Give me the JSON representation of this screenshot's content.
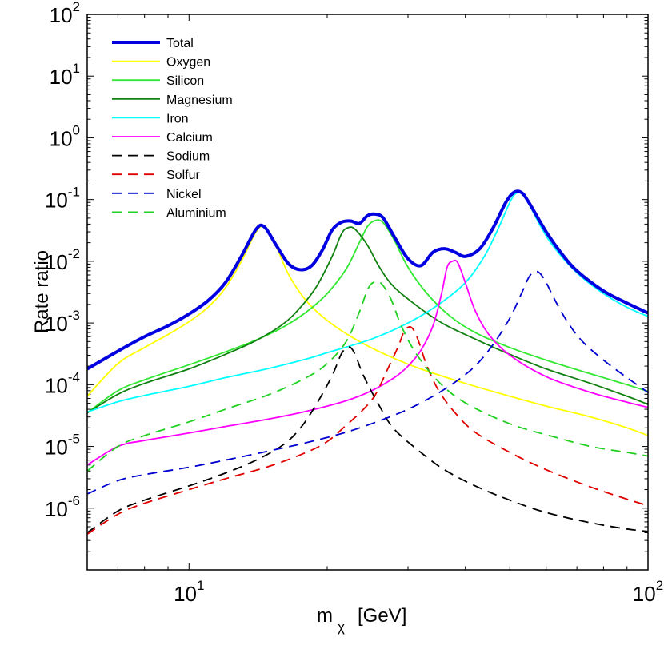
{
  "chart_data": {
    "type": "line",
    "xscale": "log",
    "yscale": "log",
    "xlim": [
      6,
      100
    ],
    "ylim": [
      1e-07,
      100
    ],
    "xlabel": {
      "base": "m",
      "subscript": "χ",
      "unit": "[GeV]"
    },
    "ylabel": "Rate ratio",
    "x_ticks": [
      {
        "value": 10,
        "base": "10",
        "exp": "1"
      },
      {
        "value": 100,
        "base": "10",
        "exp": "2"
      }
    ],
    "y_ticks": [
      {
        "value": 1e-06,
        "base": "10",
        "exp": "-6"
      },
      {
        "value": 1e-05,
        "base": "10",
        "exp": "-5"
      },
      {
        "value": 0.0001,
        "base": "10",
        "exp": "-4"
      },
      {
        "value": 0.001,
        "base": "10",
        "exp": "-3"
      },
      {
        "value": 0.01,
        "base": "10",
        "exp": "-2"
      },
      {
        "value": 0.1,
        "base": "10",
        "exp": "-1"
      },
      {
        "value": 1,
        "base": "10",
        "exp": "0"
      },
      {
        "value": 10,
        "base": "10",
        "exp": "1"
      },
      {
        "value": 100,
        "base": "10",
        "exp": "2"
      }
    ],
    "legend_position": "top-left",
    "series": [
      {
        "name": "Total",
        "color": "#0000e0",
        "dash": "solid",
        "width": 4,
        "points": [
          [
            6,
            0.00018
          ],
          [
            7,
            0.00035
          ],
          [
            8,
            0.0006
          ],
          [
            9,
            0.0009
          ],
          [
            10,
            0.0014
          ],
          [
            11,
            0.0023
          ],
          [
            12,
            0.0045
          ],
          [
            13,
            0.012
          ],
          [
            14,
            0.033
          ],
          [
            14.6,
            0.036
          ],
          [
            15.5,
            0.018
          ],
          [
            16.5,
            0.009
          ],
          [
            17.5,
            0.0073
          ],
          [
            18.5,
            0.0085
          ],
          [
            19.5,
            0.015
          ],
          [
            20.5,
            0.032
          ],
          [
            21.5,
            0.043
          ],
          [
            22.5,
            0.045
          ],
          [
            23.5,
            0.041
          ],
          [
            24.5,
            0.055
          ],
          [
            25.5,
            0.058
          ],
          [
            26.5,
            0.05
          ],
          [
            28,
            0.025
          ],
          [
            30,
            0.011
          ],
          [
            32,
            0.0085
          ],
          [
            34,
            0.014
          ],
          [
            36,
            0.016
          ],
          [
            38,
            0.014
          ],
          [
            40,
            0.012
          ],
          [
            43,
            0.016
          ],
          [
            46,
            0.035
          ],
          [
            49,
            0.09
          ],
          [
            51,
            0.13
          ],
          [
            53,
            0.13
          ],
          [
            55,
            0.09
          ],
          [
            60,
            0.03
          ],
          [
            65,
            0.013
          ],
          [
            70,
            0.007
          ],
          [
            80,
            0.0033
          ],
          [
            90,
            0.0021
          ],
          [
            100,
            0.00145
          ]
        ]
      },
      {
        "name": "Oxygen",
        "color": "#ffff00",
        "dash": "solid",
        "width": 1.8,
        "points": [
          [
            6,
            6.5e-05
          ],
          [
            7,
            0.00022
          ],
          [
            8,
            0.0004
          ],
          [
            9,
            0.00065
          ],
          [
            10,
            0.00105
          ],
          [
            11,
            0.0018
          ],
          [
            12,
            0.0037
          ],
          [
            13,
            0.01
          ],
          [
            14,
            0.03
          ],
          [
            14.6,
            0.035
          ],
          [
            15.5,
            0.017
          ],
          [
            16.5,
            0.006
          ],
          [
            18,
            0.0023
          ],
          [
            20,
            0.0011
          ],
          [
            23,
            0.00055
          ],
          [
            27,
            0.0003
          ],
          [
            32,
            0.00018
          ],
          [
            40,
            0.000105
          ],
          [
            50,
            6.5e-05
          ],
          [
            60,
            4.5e-05
          ],
          [
            75,
            3e-05
          ],
          [
            90,
            2e-05
          ],
          [
            100,
            1.5e-05
          ]
        ]
      },
      {
        "name": "Silicon",
        "color": "#30e830",
        "dash": "solid",
        "width": 1.8,
        "points": [
          [
            6,
            3.5e-05
          ],
          [
            7,
            8e-05
          ],
          [
            8,
            0.00012
          ],
          [
            10,
            0.00021
          ],
          [
            12,
            0.00034
          ],
          [
            14,
            0.00053
          ],
          [
            16,
            0.00085
          ],
          [
            18,
            0.0015
          ],
          [
            20,
            0.003
          ],
          [
            22,
            0.0075
          ],
          [
            23.5,
            0.02
          ],
          [
            24.5,
            0.037
          ],
          [
            25.5,
            0.046
          ],
          [
            26.5,
            0.042
          ],
          [
            28,
            0.022
          ],
          [
            30,
            0.008
          ],
          [
            33,
            0.003
          ],
          [
            37,
            0.0013
          ],
          [
            42,
            0.0007
          ],
          [
            50,
            0.0004
          ],
          [
            60,
            0.00025
          ],
          [
            75,
            0.00015
          ],
          [
            90,
            0.0001
          ],
          [
            100,
            7.8e-05
          ]
        ]
      },
      {
        "name": "Magnesium",
        "color": "#108010",
        "dash": "solid",
        "width": 1.8,
        "points": [
          [
            6,
            3.5e-05
          ],
          [
            7,
            7e-05
          ],
          [
            8,
            0.000105
          ],
          [
            10,
            0.00018
          ],
          [
            12,
            0.00031
          ],
          [
            14,
            0.00052
          ],
          [
            16,
            0.00095
          ],
          [
            17.5,
            0.0018
          ],
          [
            19,
            0.004
          ],
          [
            20.5,
            0.012
          ],
          [
            21.5,
            0.028
          ],
          [
            22.2,
            0.035
          ],
          [
            23,
            0.033
          ],
          [
            24.5,
            0.018
          ],
          [
            26,
            0.008
          ],
          [
            28,
            0.0038
          ],
          [
            32,
            0.0017
          ],
          [
            36,
            0.00095
          ],
          [
            42,
            0.00055
          ],
          [
            50,
            0.00031
          ],
          [
            60,
            0.00018
          ],
          [
            75,
            0.000105
          ],
          [
            90,
            6.5e-05
          ],
          [
            100,
            4.8e-05
          ]
        ]
      },
      {
        "name": "Iron",
        "color": "#00ffff",
        "dash": "solid",
        "width": 1.8,
        "points": [
          [
            6,
            3.6e-05
          ],
          [
            7,
            5.3e-05
          ],
          [
            8,
            6.7e-05
          ],
          [
            10,
            9.4e-05
          ],
          [
            12,
            0.00013
          ],
          [
            15,
            0.000185
          ],
          [
            18,
            0.00026
          ],
          [
            20,
            0.00033
          ],
          [
            25,
            0.00055
          ],
          [
            30,
            0.001
          ],
          [
            35,
            0.002
          ],
          [
            40,
            0.0045
          ],
          [
            44,
            0.012
          ],
          [
            47,
            0.032
          ],
          [
            50,
            0.09
          ],
          [
            51.5,
            0.125
          ],
          [
            53,
            0.125
          ],
          [
            55,
            0.085
          ],
          [
            58,
            0.04
          ],
          [
            62,
            0.018
          ],
          [
            70,
            0.0065
          ],
          [
            80,
            0.003
          ],
          [
            90,
            0.0018
          ],
          [
            100,
            0.00128
          ]
        ]
      },
      {
        "name": "Calcium",
        "color": "#ff00ff",
        "dash": "solid",
        "width": 1.8,
        "points": [
          [
            6,
            5e-06
          ],
          [
            7,
            1e-05
          ],
          [
            8,
            1.25e-05
          ],
          [
            10,
            1.65e-05
          ],
          [
            12,
            2.1e-05
          ],
          [
            15,
            2.8e-05
          ],
          [
            18,
            3.7e-05
          ],
          [
            22,
            5.5e-05
          ],
          [
            25,
            8e-05
          ],
          [
            28,
            0.00013
          ],
          [
            30,
            0.0002
          ],
          [
            32,
            0.00036
          ],
          [
            34,
            0.0009
          ],
          [
            35.5,
            0.003
          ],
          [
            36.5,
            0.008
          ],
          [
            37.5,
            0.01
          ],
          [
            38.5,
            0.0095
          ],
          [
            40,
            0.0045
          ],
          [
            42,
            0.0016
          ],
          [
            45,
            0.00065
          ],
          [
            50,
            0.0003
          ],
          [
            60,
            0.000135
          ],
          [
            75,
            7.5e-05
          ],
          [
            90,
            5.2e-05
          ],
          [
            100,
            4.3e-05
          ]
        ]
      },
      {
        "name": "Sodium",
        "color": "#000000",
        "dash": "12,8",
        "width": 1.8,
        "points": [
          [
            6,
            4e-07
          ],
          [
            7,
            9e-07
          ],
          [
            8,
            1.35e-06
          ],
          [
            10,
            2.3e-06
          ],
          [
            12,
            3.7e-06
          ],
          [
            14,
            6e-06
          ],
          [
            16,
            1.05e-05
          ],
          [
            17.5,
            2e-05
          ],
          [
            19,
            5e-05
          ],
          [
            20.5,
            0.00014
          ],
          [
            21.5,
            0.00032
          ],
          [
            22.3,
            0.00041
          ],
          [
            23,
            0.00031
          ],
          [
            24,
            0.00014
          ],
          [
            26,
            4.5e-05
          ],
          [
            28,
            1.9e-05
          ],
          [
            32,
            8e-06
          ],
          [
            36,
            4.2e-06
          ],
          [
            42,
            2.3e-06
          ],
          [
            50,
            1.35e-06
          ],
          [
            60,
            8.5e-07
          ],
          [
            75,
            5.8e-07
          ],
          [
            90,
            4.6e-07
          ],
          [
            100,
            4.2e-07
          ]
        ]
      },
      {
        "name": "Solfur",
        "color": "#e00000",
        "dash": "12,8",
        "width": 1.8,
        "points": [
          [
            6,
            3.8e-07
          ],
          [
            7,
            8e-07
          ],
          [
            8,
            1.2e-06
          ],
          [
            10,
            2e-06
          ],
          [
            12,
            3e-06
          ],
          [
            15,
            4.8e-06
          ],
          [
            18,
            8e-06
          ],
          [
            20,
            1.2e-05
          ],
          [
            22,
            2.2e-05
          ],
          [
            24,
            4e-05
          ],
          [
            25.5,
            7e-05
          ],
          [
            27,
            0.00017
          ],
          [
            28.5,
            0.0004
          ],
          [
            29.5,
            0.00075
          ],
          [
            30.5,
            0.00085
          ],
          [
            31.5,
            0.00055
          ],
          [
            33,
            0.0002
          ],
          [
            35,
            8e-05
          ],
          [
            38,
            3.5e-05
          ],
          [
            42,
            1.7e-05
          ],
          [
            50,
            8e-06
          ],
          [
            60,
            4.2e-06
          ],
          [
            75,
            2.2e-06
          ],
          [
            90,
            1.4e-06
          ],
          [
            100,
            1.1e-06
          ]
        ]
      },
      {
        "name": "Nickel",
        "color": "#0000d0",
        "dash": "12,8",
        "width": 1.8,
        "points": [
          [
            6,
            1.7e-06
          ],
          [
            7,
            2.8e-06
          ],
          [
            8,
            3.5e-06
          ],
          [
            10,
            4.6e-06
          ],
          [
            12,
            6e-06
          ],
          [
            15,
            8.5e-06
          ],
          [
            18,
            1.15e-05
          ],
          [
            22,
            1.7e-05
          ],
          [
            26,
            2.6e-05
          ],
          [
            30,
            4e-05
          ],
          [
            34,
            6.5e-05
          ],
          [
            38,
            0.00011
          ],
          [
            42,
            0.0002
          ],
          [
            46,
            0.00045
          ],
          [
            50,
            0.0012
          ],
          [
            53,
            0.003
          ],
          [
            55,
            0.0055
          ],
          [
            56.5,
            0.0067
          ],
          [
            58,
            0.0065
          ],
          [
            60,
            0.0045
          ],
          [
            63,
            0.0022
          ],
          [
            67,
            0.001
          ],
          [
            72,
            0.0005
          ],
          [
            80,
            0.00025
          ],
          [
            90,
            0.00013
          ],
          [
            100,
            7.5e-05
          ]
        ]
      },
      {
        "name": "Aluminium",
        "color": "#20d020",
        "dash": "12,8",
        "width": 1.8,
        "points": [
          [
            6,
            4e-06
          ],
          [
            7,
            1e-05
          ],
          [
            8,
            1.5e-05
          ],
          [
            10,
            2.5e-05
          ],
          [
            12,
            4e-05
          ],
          [
            15,
            7e-05
          ],
          [
            18,
            0.00013
          ],
          [
            20,
            0.00022
          ],
          [
            22,
            0.0005
          ],
          [
            23.5,
            0.0015
          ],
          [
            24.5,
            0.0035
          ],
          [
            25.3,
            0.0046
          ],
          [
            26.2,
            0.0044
          ],
          [
            27.5,
            0.0025
          ],
          [
            29,
            0.0009
          ],
          [
            31,
            0.00035
          ],
          [
            34,
            0.00014
          ],
          [
            38,
            6.5e-05
          ],
          [
            44,
            3.5e-05
          ],
          [
            52,
            2.1e-05
          ],
          [
            62,
            1.45e-05
          ],
          [
            75,
            1e-05
          ],
          [
            90,
            8e-06
          ],
          [
            100,
            7e-06
          ]
        ]
      }
    ]
  }
}
